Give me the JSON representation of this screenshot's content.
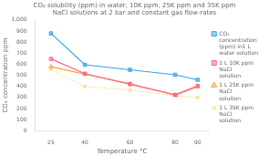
{
  "chart_data": {
    "type": "line",
    "title": [
      "CO₂ solubility (ppm) in water, 10K ppm, 25K ppm and 35K ppm",
      "NaCl solutions at 2 bar and constant gas flow-rates"
    ],
    "xlabel": "Temperature °C",
    "ylabel": "CO₂ concentration ppm",
    "x": [
      25,
      40,
      60,
      80,
      90
    ],
    "series": [
      {
        "name": "CO₂\nconcentration\n(ppm) in1 L\nwater solution",
        "values": [
          878,
          595,
          550,
          505,
          460
        ],
        "marker": "square",
        "line_style": "solid"
      },
      {
        "name": "1 L 10K ppm\nNaCl\nsolution",
        "values": [
          648,
          515,
          420,
          325,
          405
        ],
        "marker": "square",
        "line_style": "solid"
      },
      {
        "name": "1 L 25K ppm\nNaCl\nsolution",
        "values": [
          578,
          510,
          425,
          320,
          398
        ],
        "marker": "triangle",
        "line_style": "solid"
      },
      {
        "name": "1 L 35K ppm\nNaCl\nsolution",
        "values": [
          553,
          398,
          368,
          315,
          300
        ],
        "marker": "x",
        "line_style": "dotted"
      }
    ],
    "xlim": [
      18,
      95
    ],
    "xticks": [
      25,
      40,
      60,
      80,
      90
    ],
    "ylim": [
      0,
      1000
    ],
    "yticks": [
      0,
      100,
      200,
      300,
      400,
      500,
      600,
      700,
      800,
      900,
      1000
    ],
    "grid": false,
    "legend": "right"
  }
}
